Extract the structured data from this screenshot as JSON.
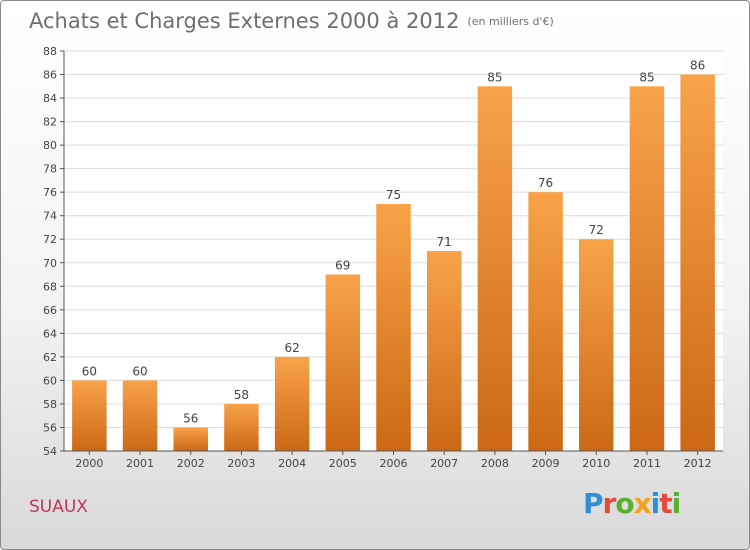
{
  "header": {
    "title": "Achats et Charges Externes 2000 à 2012",
    "unit": "(en milliers d'€)"
  },
  "footer": {
    "commune": "SUAUX",
    "logo_text": "Proxiti"
  },
  "colors": {
    "bar_light": "#f8a34a",
    "bar_dark": "#cc6814",
    "logo_letters": [
      "#2f8fd6",
      "#e24a3a",
      "#58b031",
      "#f4a21b",
      "#2f8fd6",
      "#e24a3a",
      "#58b031"
    ]
  },
  "chart_data": {
    "type": "bar",
    "categories": [
      "2000",
      "2001",
      "2002",
      "2003",
      "2004",
      "2005",
      "2006",
      "2007",
      "2008",
      "2009",
      "2010",
      "2011",
      "2012"
    ],
    "values": [
      60,
      60,
      56,
      58,
      62,
      69,
      75,
      71,
      85,
      76,
      72,
      85,
      86
    ],
    "title": "Achats et Charges Externes 2000 à 2012",
    "ylim": [
      54,
      88
    ],
    "yticks": [
      54,
      56,
      58,
      60,
      62,
      64,
      66,
      68,
      70,
      72,
      74,
      76,
      78,
      80,
      82,
      84,
      86,
      88
    ],
    "grid": true,
    "legend": "none"
  }
}
